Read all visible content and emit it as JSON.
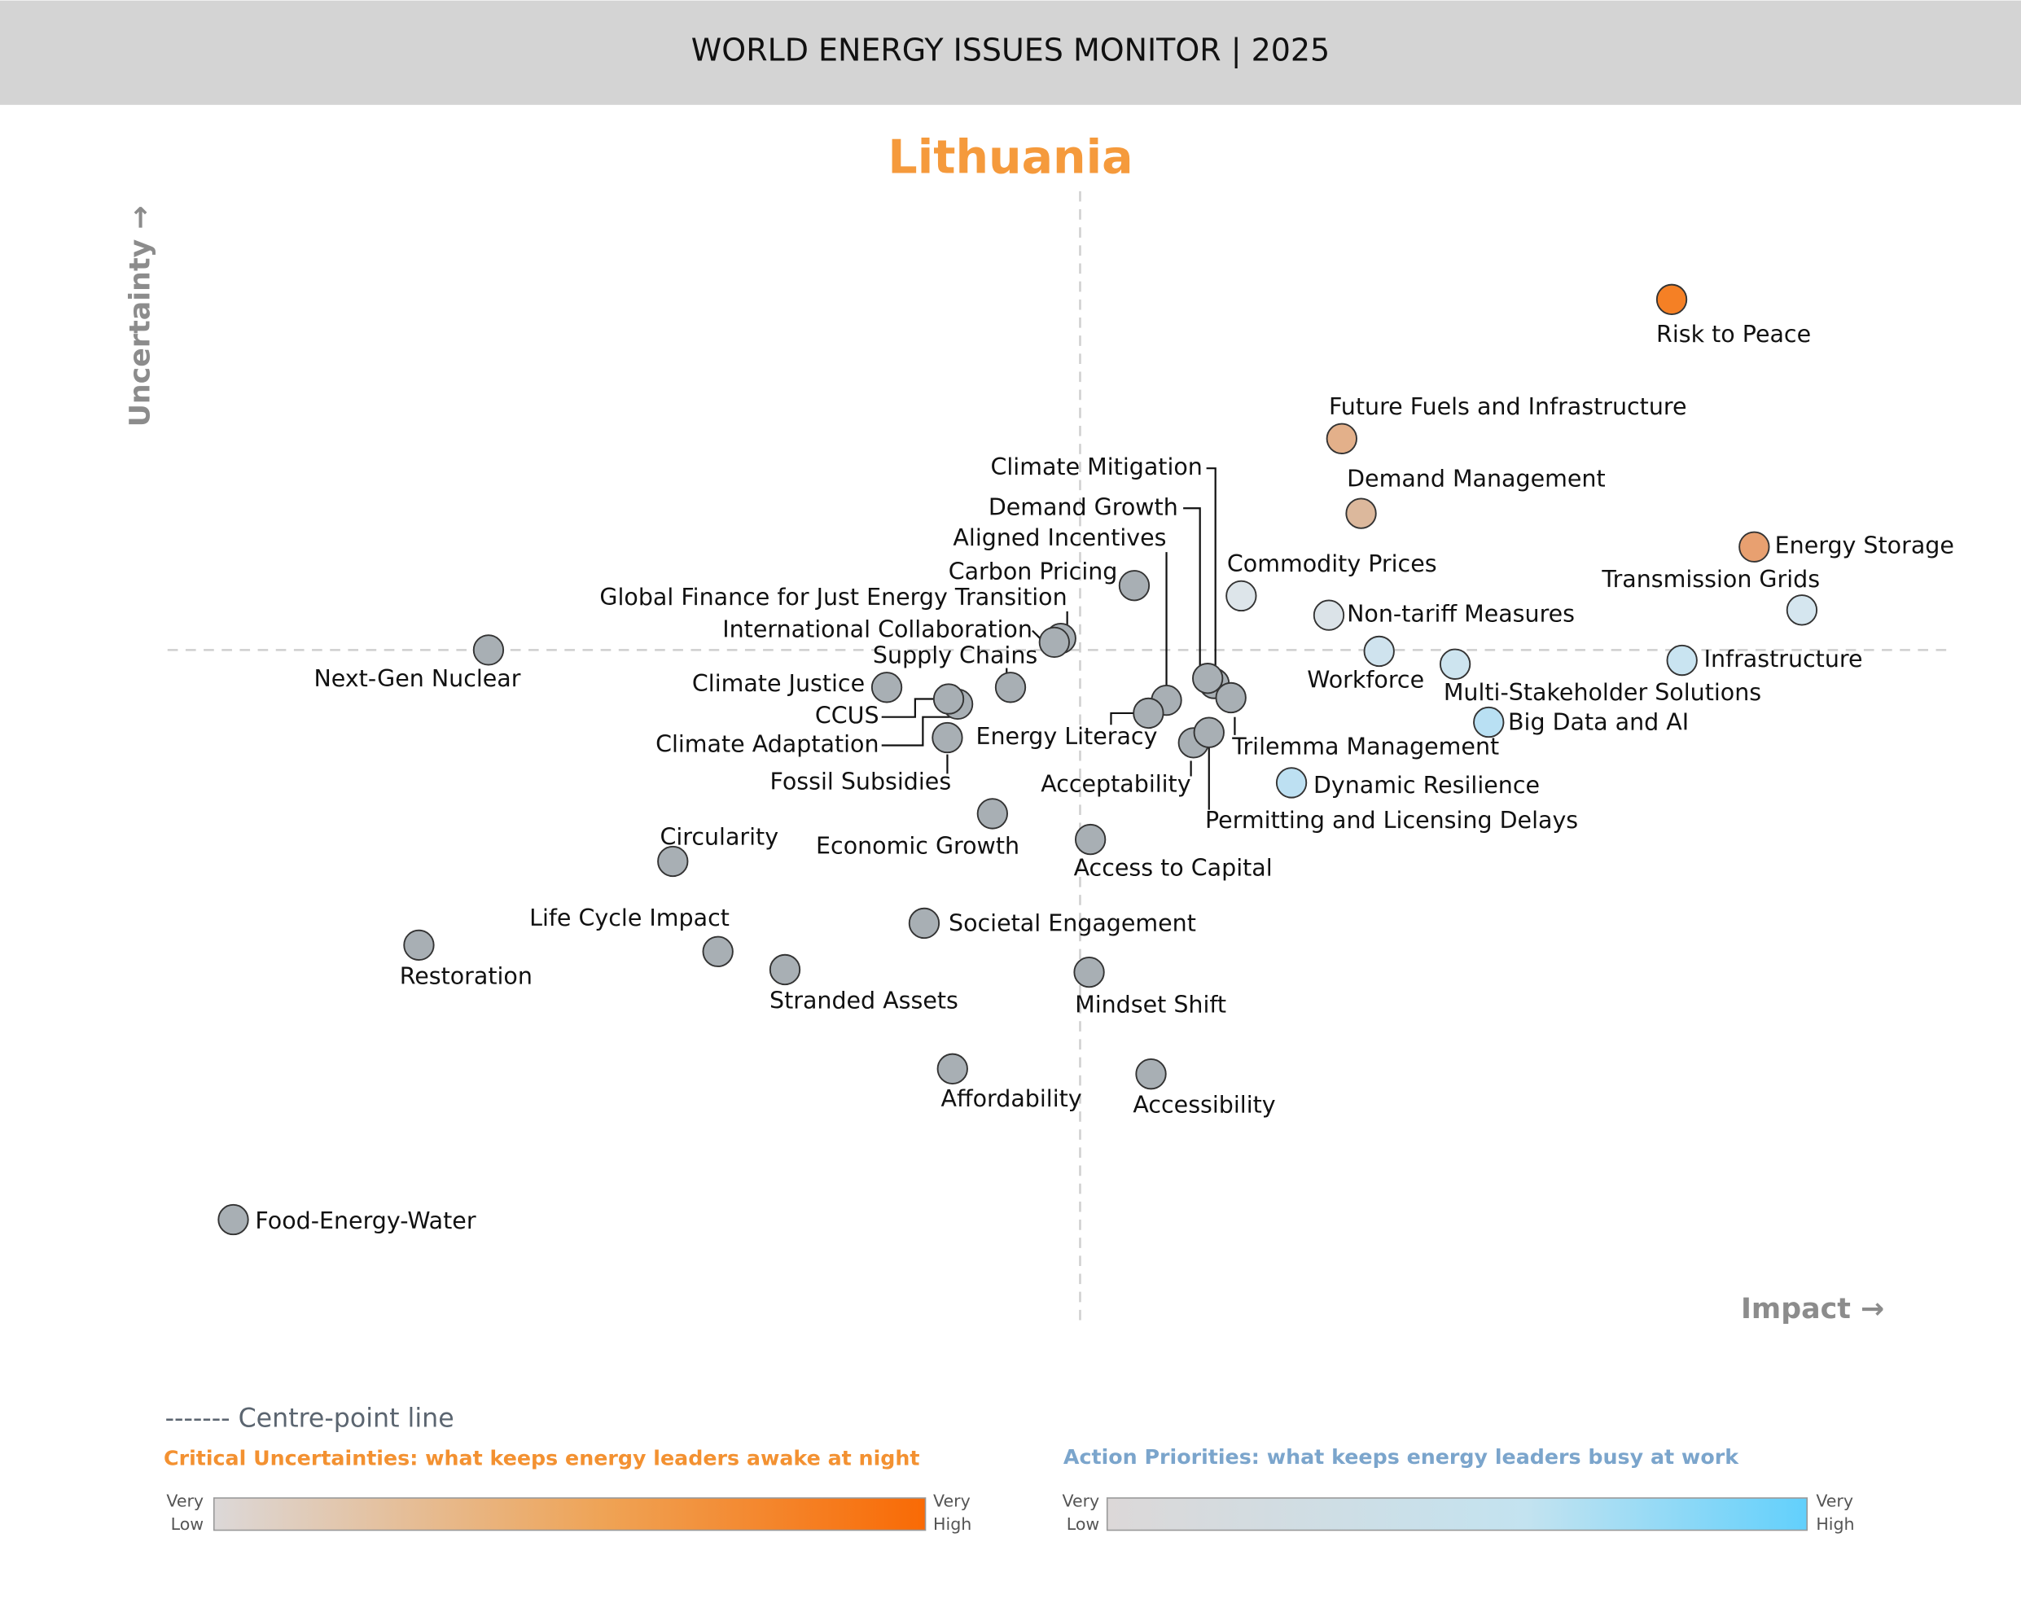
{
  "header": {
    "title": "WORLD ENERGY ISSUES MONITOR | 2025"
  },
  "chart_data": {
    "type": "scatter",
    "title": "Lithuania",
    "xlabel": "Impact →",
    "ylabel": "Uncertainty →",
    "centre_line_label": "------- Centre-point line",
    "grid": false,
    "points": [
      {
        "label": "Risk to Peace",
        "impact": 4.59,
        "uncertainty": 2.72,
        "color": "#f58025"
      },
      {
        "label": "Future Fuels and Infrastructure",
        "impact": 2.03,
        "uncertainty": 1.64,
        "color": "#e3b08a"
      },
      {
        "label": "Demand Management",
        "impact": 2.18,
        "uncertainty": 1.06,
        "color": "#dcb89c"
      },
      {
        "label": "Energy Storage",
        "impact": 5.23,
        "uncertainty": 0.8,
        "color": "#e8a070"
      },
      {
        "label": "Transmission Grids",
        "impact": 5.6,
        "uncertainty": 0.31,
        "color": "#d5e6ef"
      },
      {
        "label": "Commodity Prices",
        "impact": 1.25,
        "uncertainty": 0.42,
        "color": "#dde5ea"
      },
      {
        "label": "Non-tariff Measures",
        "impact": 1.93,
        "uncertainty": 0.27,
        "color": "#dbe3e8"
      },
      {
        "label": "Workforce",
        "impact": 2.32,
        "uncertainty": -0.01,
        "color": "#cfe3ee"
      },
      {
        "label": "Multi-Stakeholder Solutions",
        "impact": 2.91,
        "uncertainty": -0.11,
        "color": "#cde4ef"
      },
      {
        "label": "Infrastructure",
        "impact": 4.67,
        "uncertainty": -0.08,
        "color": "#c9e4f1"
      },
      {
        "label": "Big Data and AI",
        "impact": 3.17,
        "uncertainty": -0.56,
        "color": "#b9e0f3"
      },
      {
        "label": "Dynamic Resilience",
        "impact": 1.64,
        "uncertainty": -1.03,
        "color": "#bde0f2"
      },
      {
        "label": "Carbon Pricing",
        "impact": 0.42,
        "uncertainty": 0.5,
        "color": "#a8afb4"
      },
      {
        "label": "Climate Mitigation",
        "impact": 1.04,
        "uncertainty": -0.26,
        "color": "#a8afb4"
      },
      {
        "label": "Demand Growth",
        "impact": 0.99,
        "uncertainty": -0.22,
        "color": "#a8afb4"
      },
      {
        "label": "Aligned Incentives",
        "impact": 0.67,
        "uncertainty": -0.39,
        "color": "#a8afb4"
      },
      {
        "label": "Trilemma Management",
        "impact": 1.17,
        "uncertainty": -0.37,
        "color": "#a8afb4"
      },
      {
        "label": "Global Finance for Just Energy Transition",
        "impact": -0.15,
        "uncertainty": 0.09,
        "color": "#a8afb4"
      },
      {
        "label": "International Collaboration",
        "impact": -0.2,
        "uncertainty": 0.06,
        "color": "#a8afb4"
      },
      {
        "label": "Supply Chains",
        "impact": -0.54,
        "uncertainty": -0.29,
        "color": "#a8afb4"
      },
      {
        "label": "Next-Gen Nuclear",
        "impact": -4.59,
        "uncertainty": 0.0,
        "color": "#a8afb4"
      },
      {
        "label": "Climate Justice",
        "impact": -1.5,
        "uncertainty": -0.29,
        "color": "#a8afb4"
      },
      {
        "label": "Climate Adaptation",
        "impact": -0.95,
        "uncertainty": -0.42,
        "color": "#a8afb4"
      },
      {
        "label": "CCUS",
        "impact": -1.02,
        "uncertainty": -0.38,
        "color": "#a8afb4"
      },
      {
        "label": "Fossil Subsidies",
        "impact": -1.03,
        "uncertainty": -0.68,
        "color": "#a8afb4"
      },
      {
        "label": "Energy Literacy",
        "impact": 0.53,
        "uncertainty": -0.49,
        "color": "#a8afb4"
      },
      {
        "label": "Acceptability",
        "impact": 0.88,
        "uncertainty": -0.72,
        "color": "#a8afb4"
      },
      {
        "label": "Permitting and Licensing Delays",
        "impact": 1.0,
        "uncertainty": -0.64,
        "color": "#a8afb4"
      },
      {
        "label": "Economic Growth",
        "impact": -0.68,
        "uncertainty": -1.27,
        "color": "#a8afb4"
      },
      {
        "label": "Access to Capital",
        "impact": 0.08,
        "uncertainty": -1.47,
        "color": "#a8afb4"
      },
      {
        "label": "Circularity",
        "impact": -3.16,
        "uncertainty": -1.64,
        "color": "#a8afb4"
      },
      {
        "label": "Life Cycle Impact",
        "impact": -2.81,
        "uncertainty": -2.34,
        "color": "#a8afb4"
      },
      {
        "label": "Restoration",
        "impact": -5.13,
        "uncertainty": -2.29,
        "color": "#a8afb4"
      },
      {
        "label": "Stranded Assets",
        "impact": -2.29,
        "uncertainty": -2.48,
        "color": "#a8afb4"
      },
      {
        "label": "Societal Engagement",
        "impact": -1.21,
        "uncertainty": -2.12,
        "color": "#a8afb4"
      },
      {
        "label": "Mindset Shift",
        "impact": 0.07,
        "uncertainty": -2.5,
        "color": "#a8afb4"
      },
      {
        "label": "Affordability",
        "impact": -0.99,
        "uncertainty": -3.25,
        "color": "#a8afb4"
      },
      {
        "label": "Accessibility",
        "impact": 0.55,
        "uncertainty": -3.29,
        "color": "#a8afb4"
      },
      {
        "label": "Food-Energy-Water",
        "impact": -6.57,
        "uncertainty": -4.42,
        "color": "#a8afb4"
      }
    ]
  },
  "legend": {
    "critical": {
      "title": "Critical Uncertainties: what keeps energy leaders awake at night",
      "low": [
        "Very",
        "Low"
      ],
      "high": [
        "Very",
        "High"
      ],
      "color_low": "#dcd8d8",
      "color_high": "#f96a05",
      "title_color": "#f39131"
    },
    "action": {
      "title": "Action Priorities: what keeps energy leaders busy at work",
      "low": [
        "Very",
        "Low"
      ],
      "high": [
        "Very",
        "High"
      ],
      "color_low": "#dcd8d8",
      "color_high": "#62d0fc",
      "title_color": "#7ba5cc"
    }
  }
}
